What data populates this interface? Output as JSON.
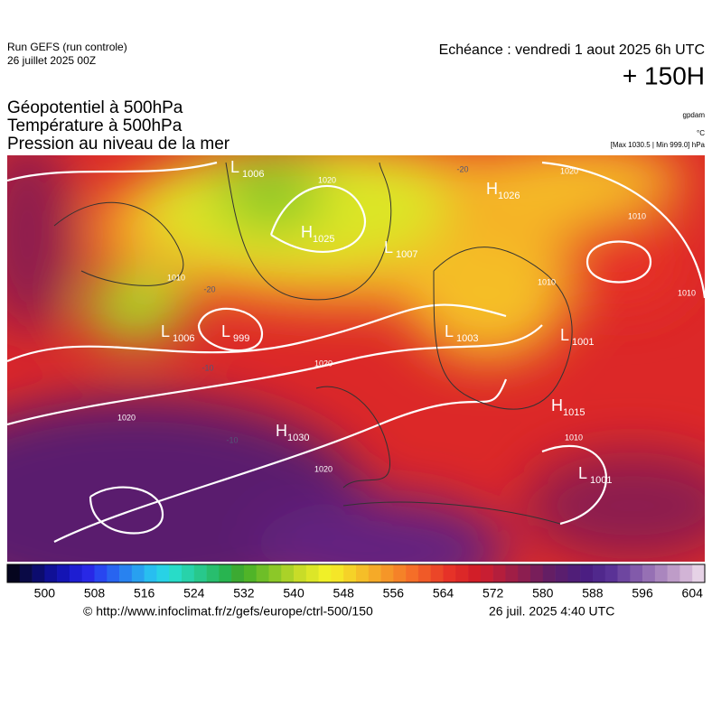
{
  "header": {
    "run": "Run GEFS (run controle)",
    "run_date": "26 juillet 2025 00Z",
    "valid": "Echéance : vendredi 1 aout 2025 6h UTC",
    "lead": "+ 150H"
  },
  "titles": [
    "Géopotentiel à 500hPa",
    "Température à 500hPa",
    "Pression au niveau de la mer"
  ],
  "units": {
    "geopotential": "gpdam",
    "temperature": "°C",
    "pressure": "[Max 1030.5 | Min 999.0] hPa"
  },
  "centers": [
    {
      "kind": "L",
      "value": "1006"
    },
    {
      "kind": "H",
      "value": "1026"
    },
    {
      "kind": "H",
      "value": "1025"
    },
    {
      "kind": "L",
      "value": "1007"
    },
    {
      "kind": "L",
      "value": "1006"
    },
    {
      "kind": "L",
      "value": "999"
    },
    {
      "kind": "L",
      "value": "1003"
    },
    {
      "kind": "L",
      "value": "1001"
    },
    {
      "kind": "H",
      "value": "1015"
    },
    {
      "kind": "H",
      "value": "1030"
    },
    {
      "kind": "L",
      "value": "1001"
    }
  ],
  "isobar_labels": [
    "1020",
    "1020",
    "1020",
    "1020",
    "1010",
    "1010",
    "1010",
    "1010",
    "1010",
    "1020"
  ],
  "temperature_labels": [
    "-20",
    "-20",
    "-10",
    "-10"
  ],
  "colorbar": {
    "labels": [
      "500",
      "508",
      "516",
      "524",
      "532",
      "540",
      "548",
      "556",
      "564",
      "572",
      "580",
      "588",
      "596",
      "604"
    ],
    "colors": [
      "#05051e",
      "#0a0a46",
      "#0c0c6e",
      "#101096",
      "#1414b4",
      "#1e1ed2",
      "#2828e6",
      "#2846f0",
      "#2864f0",
      "#2882f0",
      "#28a0f0",
      "#28bef0",
      "#28d2e6",
      "#28dcc8",
      "#28d2aa",
      "#28c88c",
      "#28be6e",
      "#28b450",
      "#3caa32",
      "#50b428",
      "#6ebe28",
      "#8cc828",
      "#aad228",
      "#c8dc28",
      "#dce628",
      "#f0f028",
      "#f5e628",
      "#f5d228",
      "#f5be28",
      "#f5aa28",
      "#f59628",
      "#f58228",
      "#f56e28",
      "#f05a28",
      "#eb4628",
      "#e63228",
      "#dc2828",
      "#d21e28",
      "#c81e32",
      "#b41e3c",
      "#a01e46",
      "#8c1e50",
      "#781e5a",
      "#641e64",
      "#5a1e6e",
      "#501e78",
      "#4b1e82",
      "#50288c",
      "#5a3296",
      "#6e46a0",
      "#825aaa",
      "#9670b4",
      "#aa86be",
      "#be9cc8",
      "#d2b4d6",
      "#e6d2e6"
    ]
  },
  "footer": {
    "source": "© http://www.infoclimat.fr/z/gefs/europe/ctrl-500/150",
    "created": "26 juil. 2025  4:40 UTC"
  }
}
